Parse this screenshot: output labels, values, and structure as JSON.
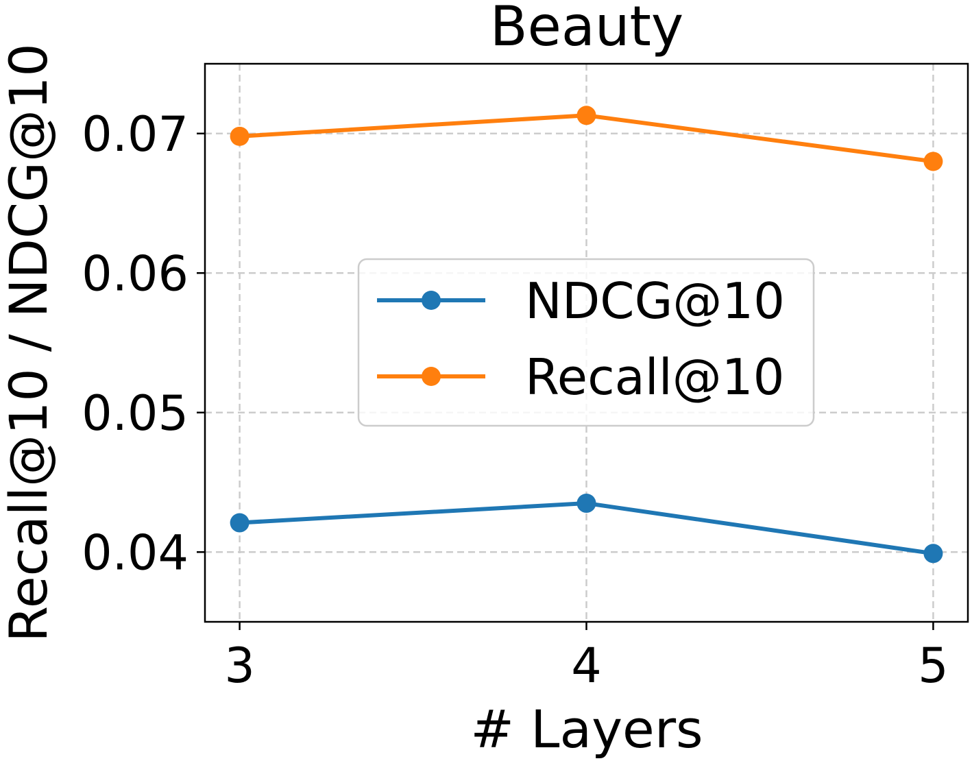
{
  "chart_data": {
    "type": "line",
    "title": "Beauty",
    "xlabel": "# Layers",
    "ylabel": "Recall@10 / NDCG@10",
    "x": [
      3,
      4,
      5
    ],
    "x_tick_labels": [
      "3",
      "4",
      "5"
    ],
    "y_ticks": [
      0.04,
      0.05,
      0.06,
      0.07
    ],
    "y_tick_labels": [
      "0.04",
      "0.05",
      "0.06",
      "0.07"
    ],
    "xlim": [
      2.9,
      5.1
    ],
    "ylim": [
      0.035,
      0.075
    ],
    "grid": true,
    "legend_position": "center-right",
    "series": [
      {
        "name": "NDCG@10",
        "color": "#1f77b4",
        "marker": "circle",
        "values": [
          0.0421,
          0.0435,
          0.0399
        ]
      },
      {
        "name": "Recall@10",
        "color": "#ff7f0e",
        "marker": "circle",
        "values": [
          0.0698,
          0.0713,
          0.068
        ]
      }
    ]
  }
}
